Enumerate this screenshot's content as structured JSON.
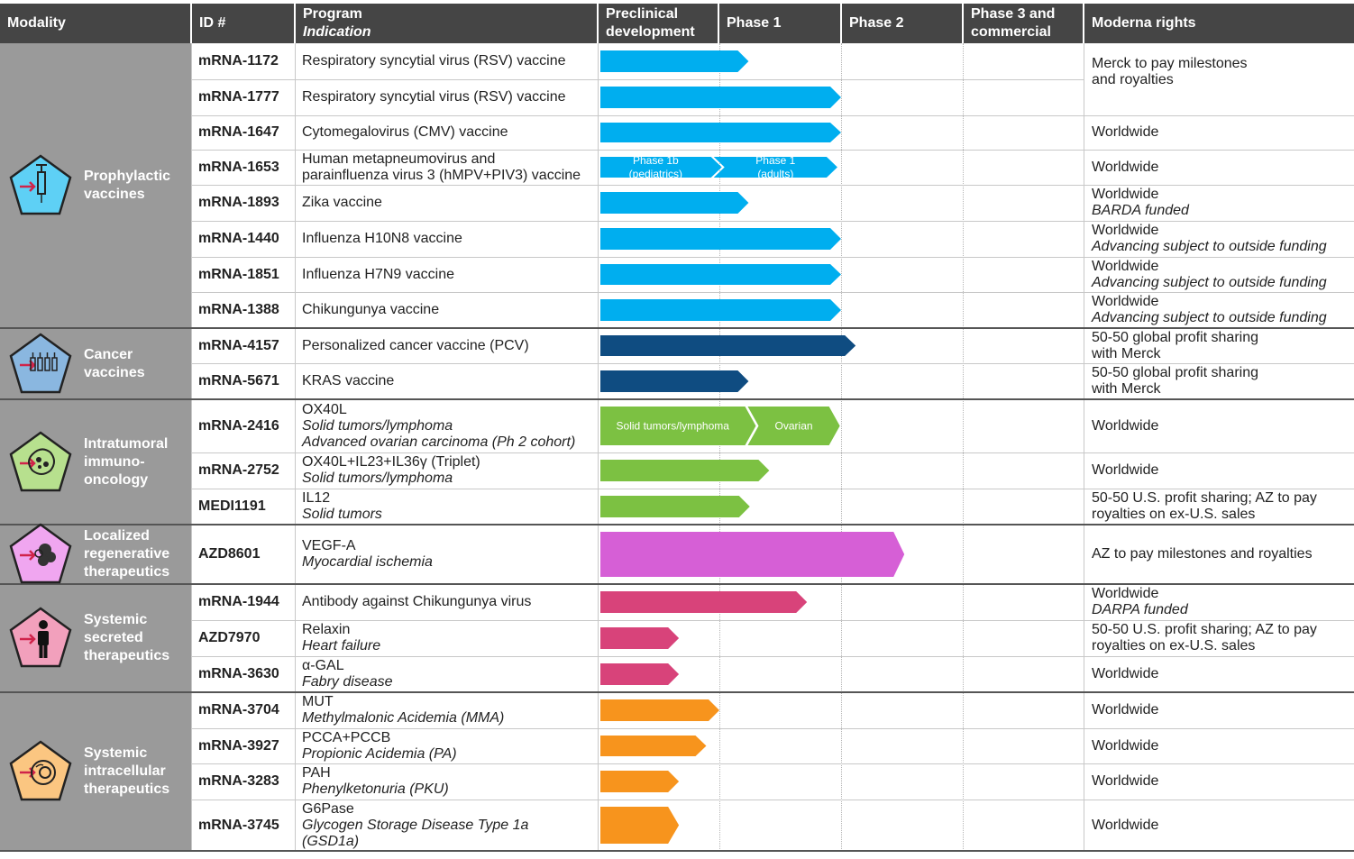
{
  "headers": {
    "modality": "Modality",
    "id": "ID #",
    "program": "Program",
    "indication": "Indication",
    "preclinical": [
      "Preclinical",
      "development"
    ],
    "phase1": "Phase 1",
    "phase2": "Phase 2",
    "phase3": [
      "Phase 3 and",
      "commercial"
    ],
    "rights": "Moderna rights"
  },
  "colors": {
    "prophylactic": "#00aeef",
    "cancer": "#0f4c81",
    "intratumoral": "#7cc142",
    "regenerative": "#d65fd6",
    "secreted": "#d8437a",
    "intracellular": "#f7941d"
  },
  "modalities": [
    {
      "key": "prophylactic",
      "label": [
        "Prophylactic",
        "vaccines"
      ],
      "icon": "syringe-icon",
      "fill": "#5ed0f5"
    },
    {
      "key": "cancer",
      "label": [
        "Cancer",
        "vaccines"
      ],
      "icon": "vials-icon",
      "fill": "#8ab7e0"
    },
    {
      "key": "intratumoral",
      "label": [
        "Intratumoral",
        "immuno-",
        "oncology"
      ],
      "icon": "tumor-cell-icon",
      "fill": "#b7e08e"
    },
    {
      "key": "regenerative",
      "label": [
        "Localized",
        "regenerative",
        "therapeutics"
      ],
      "icon": "tissue-icon",
      "fill": "#f0a6f0"
    },
    {
      "key": "secreted",
      "label": [
        "Systemic",
        "secreted",
        "therapeutics"
      ],
      "icon": "person-icon",
      "fill": "#f2a0bc"
    },
    {
      "key": "intracellular",
      "label": [
        "Systemic",
        "intracellular",
        "therapeutics"
      ],
      "icon": "cell-icon",
      "fill": "#fbc681"
    }
  ],
  "chart_data": {
    "type": "pipeline",
    "title": "",
    "stages": [
      "Preclinical development",
      "Phase 1",
      "Phase 2",
      "Phase 3 and commercial"
    ],
    "programs": [
      {
        "id": "mRNA-1172",
        "program": [
          "Respiratory syncytial virus (RSV) vaccine"
        ],
        "indication": [],
        "modality": "prophylactic",
        "progress": 1.24,
        "rights": [],
        "rights_it": []
      },
      {
        "id": "mRNA-1777",
        "program": [
          "Respiratory syncytial virus (RSV) vaccine"
        ],
        "indication": [],
        "modality": "prophylactic",
        "progress": 2.0,
        "rights": [],
        "rights_it": []
      },
      {
        "id": "mRNA-1647",
        "program": [
          "Cytomegalovirus (CMV) vaccine"
        ],
        "indication": [],
        "modality": "prophylactic",
        "progress": 2.0,
        "rights": [
          "Worldwide"
        ],
        "rights_it": []
      },
      {
        "id": "mRNA-1653",
        "program": [
          "Human metapneumovirus and",
          "parainfluenza virus 3 (hMPV+PIV3) vaccine"
        ],
        "indication": [],
        "modality": "prophylactic",
        "progress": 1.97,
        "segments": [
          {
            "label": [
              "Phase 1b",
              "(pediatrics)"
            ],
            "end": 1.02
          },
          {
            "label": [
              "Phase 1",
              "(adults)"
            ],
            "end": 1.97
          }
        ],
        "rights": [
          "Worldwide"
        ],
        "rights_it": []
      },
      {
        "id": "mRNA-1893",
        "program": [
          "Zika vaccine"
        ],
        "indication": [],
        "modality": "prophylactic",
        "progress": 1.24,
        "rights": [
          "Worldwide"
        ],
        "rights_it": [
          "BARDA funded"
        ]
      },
      {
        "id": "mRNA-1440",
        "program": [
          "Influenza H10N8 vaccine"
        ],
        "indication": [],
        "modality": "prophylactic",
        "progress": 2.0,
        "rights": [
          "Worldwide"
        ],
        "rights_it": [
          "Advancing subject to outside funding"
        ]
      },
      {
        "id": "mRNA-1851",
        "program": [
          "Influenza H7N9 vaccine"
        ],
        "indication": [],
        "modality": "prophylactic",
        "progress": 2.0,
        "rights": [
          "Worldwide"
        ],
        "rights_it": [
          "Advancing subject to outside funding"
        ]
      },
      {
        "id": "mRNA-1388",
        "program": [
          "Chikungunya vaccine"
        ],
        "indication": [],
        "modality": "prophylactic",
        "progress": 2.0,
        "rights": [
          "Worldwide"
        ],
        "rights_it": [
          "Advancing subject to outside funding"
        ]
      },
      {
        "id": "mRNA-4157",
        "program": [
          "Personalized cancer vaccine (PCV)"
        ],
        "indication": [],
        "modality": "cancer",
        "progress": 2.12,
        "rights": [
          "50-50 global profit sharing",
          "with Merck"
        ],
        "rights_it": []
      },
      {
        "id": "mRNA-5671",
        "program": [
          "KRAS vaccine"
        ],
        "indication": [],
        "modality": "cancer",
        "progress": 1.24,
        "rights": [
          "50-50 global profit sharing",
          "with Merck"
        ],
        "rights_it": []
      },
      {
        "id": "mRNA-2416",
        "program": [
          "OX40L"
        ],
        "indication": [
          "Solid tumors/lymphoma",
          "Advanced ovarian carcinoma (Ph 2 cohort)"
        ],
        "modality": "intratumoral",
        "progress": 1.99,
        "segments": [
          {
            "label": [
              "Solid tumors/lymphoma"
            ],
            "end": 1.3
          },
          {
            "label": [
              "Ovarian"
            ],
            "end": 1.99
          }
        ],
        "rights": [
          "Worldwide"
        ],
        "rights_it": []
      },
      {
        "id": "mRNA-2752",
        "program": [
          "OX40L+IL23+IL36γ (Triplet)"
        ],
        "indication": [
          "Solid tumors/lymphoma"
        ],
        "modality": "intratumoral",
        "progress": 1.41,
        "rights": [
          "Worldwide"
        ],
        "rights_it": []
      },
      {
        "id": "MEDI1191",
        "program": [
          "IL12"
        ],
        "indication": [
          "Solid tumors"
        ],
        "modality": "intratumoral",
        "progress": 1.25,
        "rights": [
          "50-50 U.S. profit sharing; AZ to pay",
          "royalties on ex-U.S. sales"
        ],
        "rights_it": []
      },
      {
        "id": "AZD8601",
        "program": [
          "VEGF-A"
        ],
        "indication": [
          "Myocardial ischemia"
        ],
        "modality": "regenerative",
        "progress": 2.52,
        "rights": [
          "AZ to pay milestones and royalties"
        ],
        "rights_it": []
      },
      {
        "id": "mRNA-1944",
        "program": [
          "Antibody against Chikungunya virus"
        ],
        "indication": [],
        "modality": "secreted",
        "progress": 1.72,
        "rights": [
          "Worldwide"
        ],
        "rights_it": [
          "DARPA funded"
        ]
      },
      {
        "id": "AZD7970",
        "program": [
          "Relaxin"
        ],
        "indication": [
          "Heart failure"
        ],
        "modality": "secreted",
        "progress": 0.66,
        "rights": [
          "50-50 U.S. profit sharing; AZ to pay",
          "royalties on ex-U.S. sales"
        ],
        "rights_it": []
      },
      {
        "id": "mRNA-3630",
        "program": [
          "α-GAL"
        ],
        "indication": [
          "Fabry disease"
        ],
        "modality": "secreted",
        "progress": 0.66,
        "rights": [
          "Worldwide"
        ],
        "rights_it": []
      },
      {
        "id": "mRNA-3704",
        "program": [
          "MUT"
        ],
        "indication": [
          "Methylmalonic Acidemia (MMA)"
        ],
        "modality": "intracellular",
        "progress": 1.0,
        "rights": [
          "Worldwide"
        ],
        "rights_it": []
      },
      {
        "id": "mRNA-3927",
        "program": [
          "PCCA+PCCB"
        ],
        "indication": [
          "Propionic Acidemia (PA)"
        ],
        "modality": "intracellular",
        "progress": 0.89,
        "rights": [
          "Worldwide"
        ],
        "rights_it": []
      },
      {
        "id": "mRNA-3283",
        "program": [
          "PAH"
        ],
        "indication": [
          "Phenylketonuria (PKU)"
        ],
        "modality": "intracellular",
        "progress": 0.66,
        "rights": [
          "Worldwide"
        ],
        "rights_it": []
      },
      {
        "id": "mRNA-3745",
        "program": [
          "G6Pase"
        ],
        "indication": [
          "Glycogen Storage Disease Type 1a",
          "(GSD1a)"
        ],
        "modality": "intracellular",
        "progress": 0.66,
        "rights": [
          "Worldwide"
        ],
        "rights_it": []
      }
    ],
    "merged_rights": {
      "rows": [
        "mRNA-1172",
        "mRNA-1777"
      ],
      "text": [
        "Merck to pay milestones",
        "and royalties"
      ]
    }
  }
}
